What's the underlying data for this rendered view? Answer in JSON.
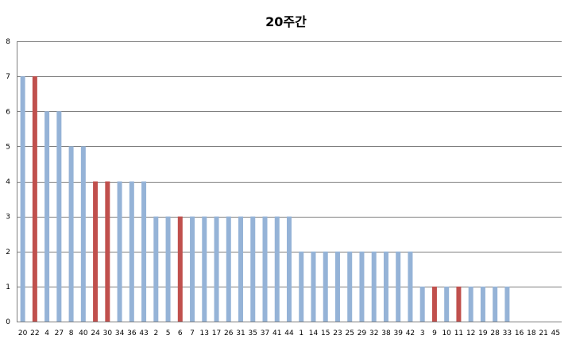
{
  "chart_data": {
    "type": "bar",
    "title": "20주간",
    "xlabel": "",
    "ylabel": "",
    "ylim": [
      0,
      8
    ],
    "yticks": [
      0,
      1,
      2,
      3,
      4,
      5,
      6,
      7,
      8
    ],
    "grid": true,
    "legend": "none",
    "colors": {
      "default": "#95B3D7",
      "highlight": "#C0504D",
      "grid": "#7F7F7F"
    },
    "categories": [
      "20",
      "22",
      "4",
      "27",
      "8",
      "40",
      "24",
      "30",
      "34",
      "36",
      "43",
      "2",
      "5",
      "6",
      "7",
      "13",
      "17",
      "26",
      "31",
      "35",
      "37",
      "41",
      "44",
      "1",
      "14",
      "15",
      "23",
      "25",
      "29",
      "32",
      "38",
      "39",
      "42",
      "3",
      "9",
      "10",
      "11",
      "12",
      "19",
      "28",
      "33",
      "16",
      "18",
      "21",
      "45"
    ],
    "values": [
      7,
      7,
      6,
      6,
      5,
      5,
      4,
      4,
      4,
      4,
      4,
      3,
      3,
      3,
      3,
      3,
      3,
      3,
      3,
      3,
      3,
      3,
      3,
      2,
      2,
      2,
      2,
      2,
      2,
      2,
      2,
      2,
      2,
      1,
      1,
      1,
      1,
      1,
      1,
      1,
      1,
      0,
      0,
      0,
      0
    ],
    "highlighted": [
      "22",
      "24",
      "30",
      "6",
      "9",
      "11"
    ]
  }
}
